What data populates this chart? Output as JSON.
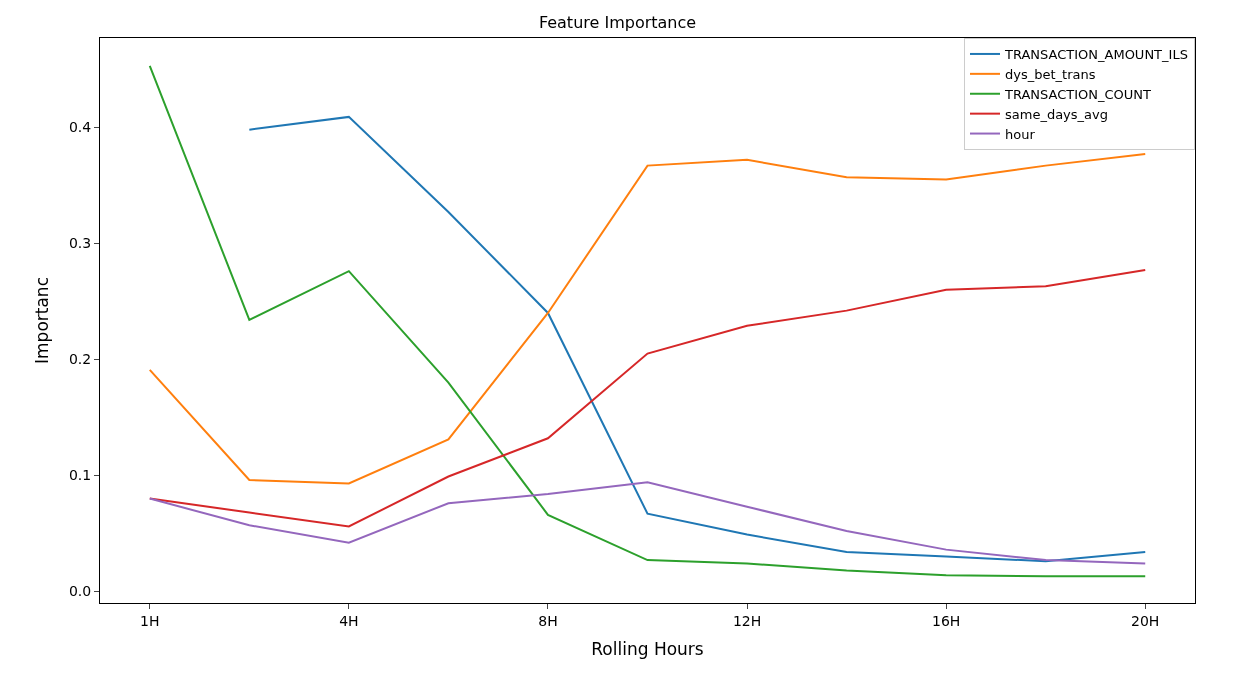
{
  "chart_data": {
    "type": "line",
    "title": "Feature Importance",
    "xlabel": "Rolling Hours",
    "ylabel": "Importanc",
    "categories": [
      "1H",
      null,
      "4H",
      null,
      "8H",
      null,
      "12H",
      null,
      "16H",
      null,
      "20H"
    ],
    "series": [
      {
        "name": "TRANSACTION_AMOUNT_ILS",
        "color": "#1f77b4",
        "values": [
          null,
          0.398,
          0.409,
          0.327,
          0.24,
          0.067,
          0.049,
          0.034,
          0.03,
          0.026,
          0.034
        ]
      },
      {
        "name": "dys_bet_trans",
        "color": "#ff7f0e",
        "values": [
          0.191,
          0.096,
          0.093,
          0.131,
          0.24,
          0.367,
          0.372,
          0.357,
          0.355,
          0.367,
          0.377
        ]
      },
      {
        "name": "TRANSACTION_COUNT",
        "color": "#2ca02c",
        "values": [
          0.453,
          0.234,
          0.276,
          0.18,
          0.066,
          0.027,
          0.024,
          0.018,
          0.014,
          0.013,
          0.013
        ]
      },
      {
        "name": "same_days_avg",
        "color": "#d62728",
        "values": [
          0.08,
          0.068,
          0.056,
          0.099,
          0.132,
          0.205,
          0.229,
          0.242,
          0.26,
          0.263,
          0.277
        ]
      },
      {
        "name": "hour",
        "color": "#9467bd",
        "values": [
          0.08,
          0.057,
          0.042,
          0.076,
          0.084,
          0.094,
          0.073,
          0.052,
          0.036,
          0.027,
          0.024
        ]
      }
    ],
    "ylim": [
      -0.01,
      0.477
    ],
    "yticks": [
      {
        "value": 0,
        "label": "0.0"
      },
      0.1,
      0.2,
      0.3,
      0.4
    ],
    "legend": "top right",
    "marker": "none",
    "line_style": "solid"
  }
}
